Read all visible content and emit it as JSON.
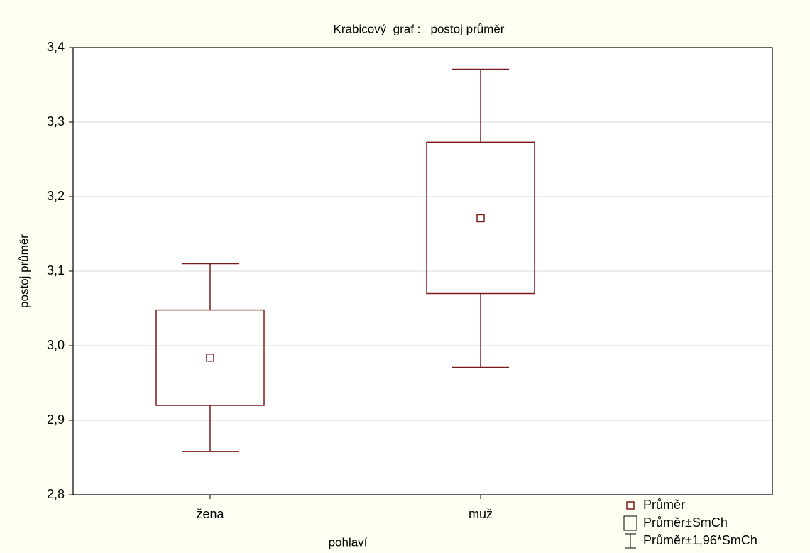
{
  "chart_data": {
    "type": "box",
    "title": "Krabicový  graf :   postoj průměr",
    "xlabel": "pohlaví",
    "ylabel": "postoj průměr",
    "categories": [
      "žena",
      "muž"
    ],
    "color": "#7b1a1a",
    "series": [
      {
        "name": "Průměr",
        "values": [
          2.984,
          3.171
        ]
      },
      {
        "name": "Průměr±SmCh",
        "low": [
          2.92,
          3.07
        ],
        "high": [
          3.048,
          3.273
        ]
      },
      {
        "name": "Průměr±1,96*SmCh",
        "low": [
          2.858,
          2.971
        ],
        "high": [
          3.11,
          3.371
        ]
      }
    ],
    "ylim": [
      2.8,
      3.4
    ],
    "yticks": [
      {
        "value": 2.8,
        "label": "2,8"
      },
      {
        "value": 2.9,
        "label": "2,9"
      },
      {
        "value": 3.0,
        "label": "3,0"
      },
      {
        "value": 3.1,
        "label": "3,1"
      },
      {
        "value": 3.2,
        "label": "3,2"
      },
      {
        "value": 3.3,
        "label": "3,3"
      },
      {
        "value": 3.4,
        "label": "3,4"
      }
    ],
    "grid": true
  }
}
